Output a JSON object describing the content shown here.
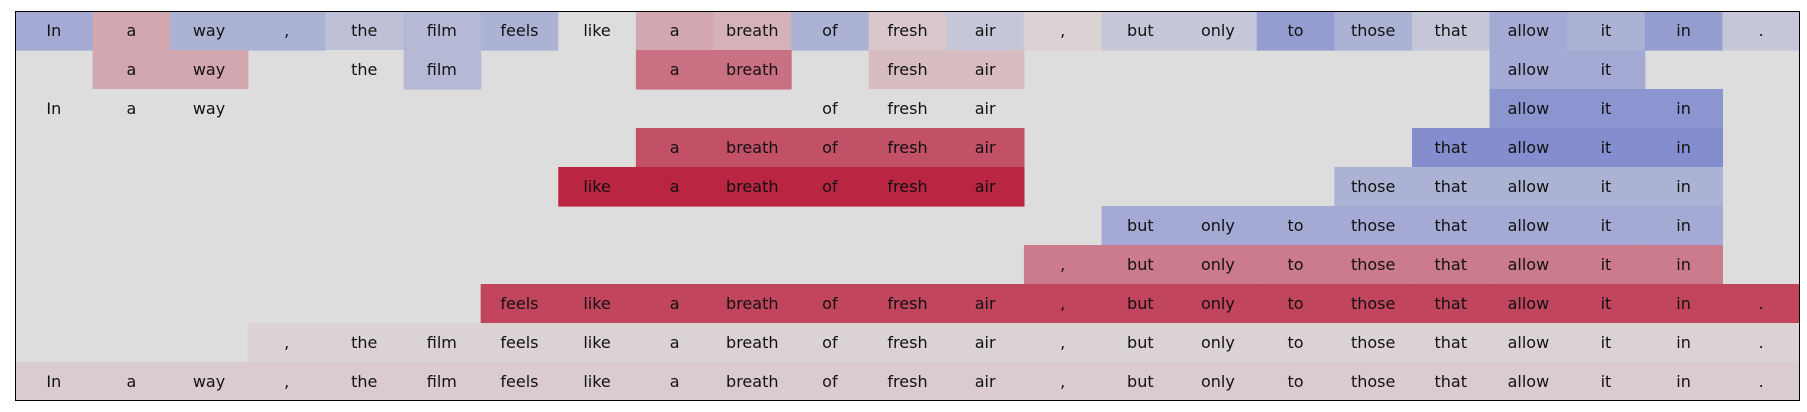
{
  "chart_data": {
    "type": "heatmap",
    "title": "",
    "xlabel": "",
    "ylabel": "",
    "color_scale": {
      "min": -1,
      "max": 1,
      "negative": "#3b4cc0",
      "neutral": "#dddddd",
      "positive": "#b40426"
    },
    "tokens": [
      "In",
      "a",
      "way",
      ",",
      "the",
      "film",
      "feels",
      "like",
      "a",
      "breath",
      "of",
      "fresh",
      "air",
      ",",
      "but",
      "only",
      "to",
      "those",
      "that",
      "allow",
      "it",
      "in",
      "."
    ],
    "rows": [
      {
        "span": [
          0,
          22
        ],
        "values": [
          -0.35,
          0.25,
          -0.3,
          -0.3,
          -0.2,
          -0.25,
          -0.3,
          0.0,
          0.25,
          0.2,
          -0.3,
          0.1,
          -0.15,
          0.05,
          -0.15,
          -0.15,
          -0.45,
          -0.3,
          -0.15,
          -0.35,
          -0.3,
          -0.45,
          -0.15
        ]
      },
      {
        "span": [
          1,
          2
        ],
        "value": 0.25,
        "extras": [
          {
            "span": [
              5,
              5
            ],
            "value": -0.25
          },
          {
            "span": [
              8,
              9
            ],
            "value": 0.5
          },
          {
            "span": [
              11,
              12
            ],
            "value": 0.15
          },
          {
            "span": [
              19,
              20
            ],
            "value": -0.35
          },
          {
            "span": [
              4,
              4
            ],
            "value": 0.0
          }
        ]
      },
      {
        "span": [
          0,
          2
        ],
        "value": 0.0,
        "extras": [
          {
            "span": [
              10,
              12
            ],
            "value": 0.0
          },
          {
            "span": [
              19,
              21
            ],
            "value": -0.5
          }
        ]
      },
      {
        "span": [
          8,
          12
        ],
        "value": 0.65,
        "extras": [
          {
            "span": [
              18,
              21
            ],
            "value": -0.55
          }
        ]
      },
      {
        "span": [
          7,
          12
        ],
        "value": 0.85,
        "extras": [
          {
            "span": [
              17,
              21
            ],
            "value": -0.3
          }
        ]
      },
      {
        "span": [
          14,
          21
        ],
        "value": -0.35
      },
      {
        "span": [
          13,
          21
        ],
        "value": 0.45
      },
      {
        "span": [
          6,
          22
        ],
        "value": 0.7
      },
      {
        "span": [
          3,
          22
        ],
        "value": 0.05
      },
      {
        "span": [
          0,
          22
        ],
        "value": 0.08
      }
    ]
  }
}
